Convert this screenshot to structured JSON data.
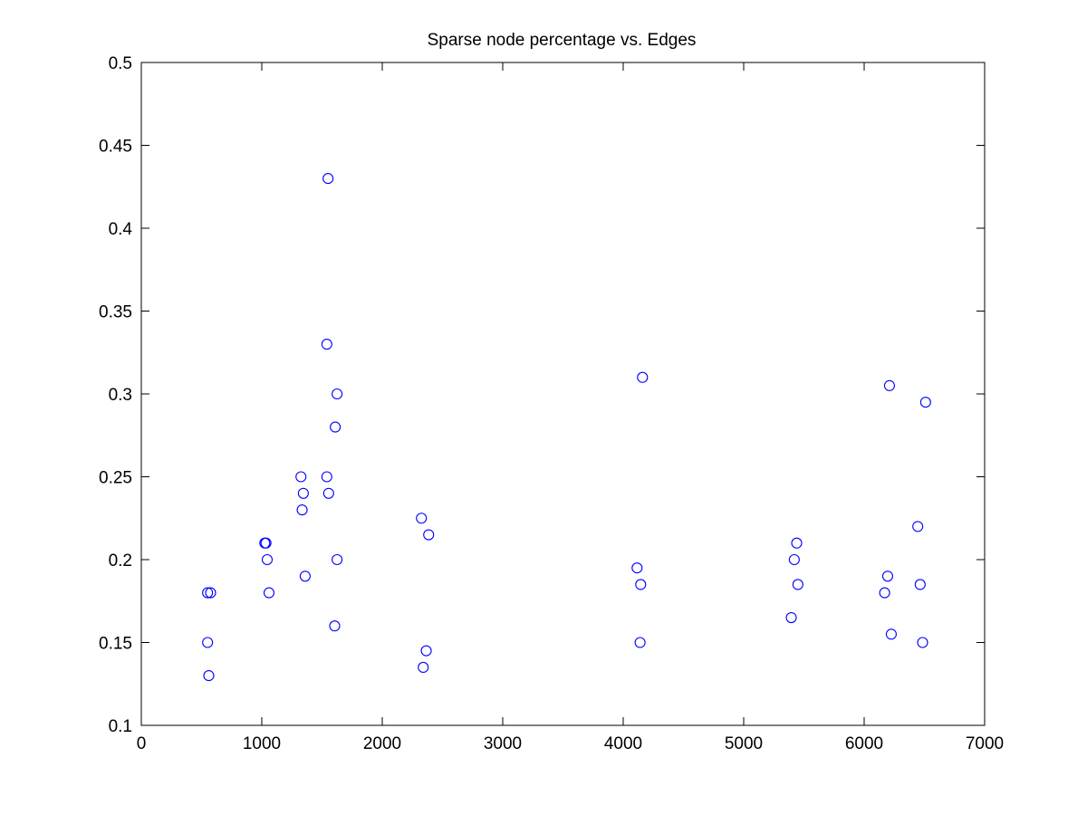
{
  "chart_data": {
    "type": "scatter",
    "title": "Sparse node percentage vs. Edges",
    "xlabel": "",
    "ylabel": "",
    "xlim": [
      0,
      7000
    ],
    "ylim": [
      0.1,
      0.5
    ],
    "x_ticks": [
      0,
      1000,
      2000,
      3000,
      4000,
      5000,
      6000,
      7000
    ],
    "x_tick_labels": [
      "0",
      "1000",
      "2000",
      "3000",
      "4000",
      "5000",
      "6000",
      "7000"
    ],
    "y_ticks": [
      0.1,
      0.15,
      0.2,
      0.25,
      0.3,
      0.35,
      0.4,
      0.45,
      0.5
    ],
    "y_tick_labels": [
      "0.1",
      "0.15",
      "0.2",
      "0.25",
      "0.3",
      "0.35",
      "0.4",
      "0.45",
      "0.5"
    ],
    "grid": false,
    "marker": "circle-open",
    "color": "#0000ff",
    "points": [
      [
        550,
        0.18
      ],
      [
        575,
        0.18
      ],
      [
        550,
        0.15
      ],
      [
        560,
        0.13
      ],
      [
        1025,
        0.21
      ],
      [
        1035,
        0.21
      ],
      [
        1045,
        0.2
      ],
      [
        1060,
        0.18
      ],
      [
        1325,
        0.25
      ],
      [
        1345,
        0.24
      ],
      [
        1335,
        0.23
      ],
      [
        1360,
        0.19
      ],
      [
        1550,
        0.43
      ],
      [
        1540,
        0.33
      ],
      [
        1540,
        0.25
      ],
      [
        1555,
        0.24
      ],
      [
        1625,
        0.3
      ],
      [
        1610,
        0.28
      ],
      [
        1625,
        0.2
      ],
      [
        1605,
        0.16
      ],
      [
        2325,
        0.225
      ],
      [
        2385,
        0.215
      ],
      [
        2365,
        0.145
      ],
      [
        2340,
        0.135
      ],
      [
        4160,
        0.31
      ],
      [
        4115,
        0.195
      ],
      [
        4145,
        0.185
      ],
      [
        4140,
        0.15
      ],
      [
        5440,
        0.21
      ],
      [
        5420,
        0.2
      ],
      [
        5450,
        0.185
      ],
      [
        5395,
        0.165
      ],
      [
        6210,
        0.305
      ],
      [
        6510,
        0.295
      ],
      [
        6445,
        0.22
      ],
      [
        6195,
        0.19
      ],
      [
        6465,
        0.185
      ],
      [
        6170,
        0.18
      ],
      [
        6225,
        0.155
      ],
      [
        6485,
        0.15
      ]
    ]
  }
}
